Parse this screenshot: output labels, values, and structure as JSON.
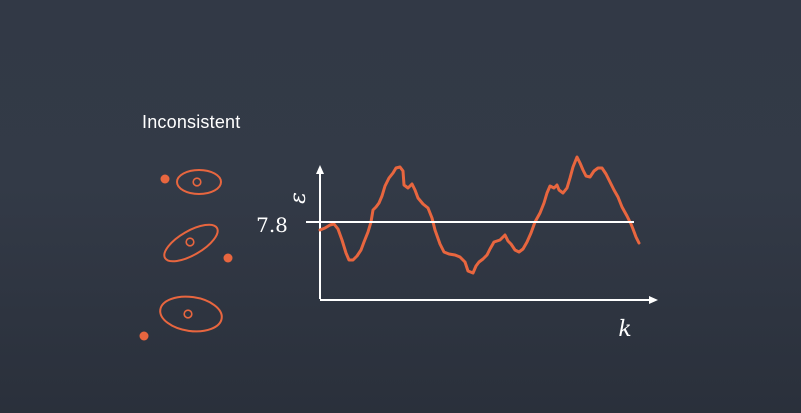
{
  "title": "Inconsistent",
  "colors": {
    "background": "#323946",
    "accent": "#e8663f",
    "axis": "#ffffff"
  },
  "ellipse_glyphs": [
    {
      "name": "ellipse-upright-small"
    },
    {
      "name": "ellipse-tilted"
    },
    {
      "name": "ellipse-wide"
    }
  ],
  "chart": {
    "y_label": "ε",
    "x_label": "k",
    "threshold_label": "7.8",
    "threshold_value": 7.8
  }
}
